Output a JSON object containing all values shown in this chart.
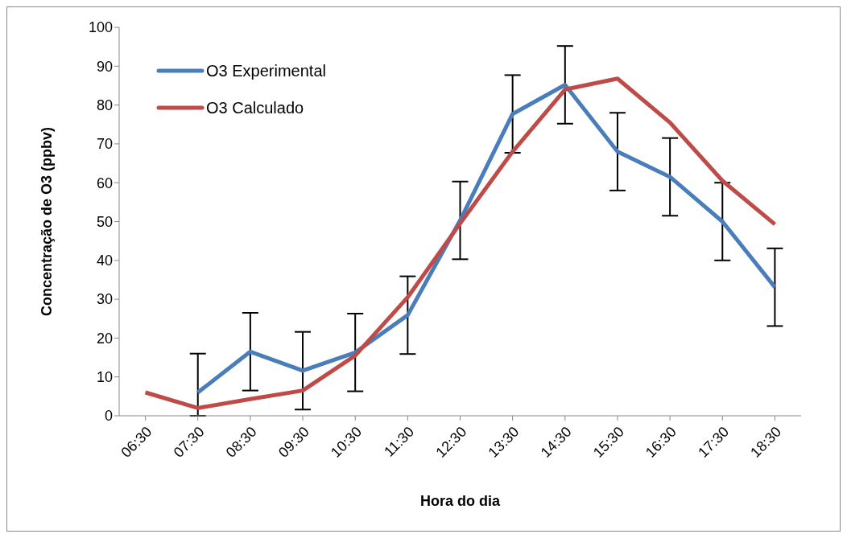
{
  "chart_data": {
    "type": "line",
    "xlabel": "Hora do dia",
    "ylabel": "Concentração de O3 (ppbv)",
    "categories": [
      "06:30",
      "07:30",
      "08:30",
      "09:30",
      "10:30",
      "11:30",
      "12:30",
      "13:30",
      "14:30",
      "15:30",
      "16:30",
      "17:30",
      "18:30"
    ],
    "series": [
      {
        "name": "O3 Experimental",
        "color": "#4a7ebb",
        "values": [
          null,
          6,
          16.5,
          11.6,
          16.3,
          25.9,
          50.3,
          77.7,
          85.2,
          68,
          61.5,
          50,
          33.1
        ],
        "errors": [
          null,
          [
            0,
            16
          ],
          10,
          10,
          10,
          10,
          10,
          10,
          10,
          10,
          10,
          10,
          10
        ]
      },
      {
        "name": "O3 Calculado",
        "color": "#be4b48",
        "values": [
          6,
          2,
          4.3,
          6.5,
          15.5,
          30.5,
          49.5,
          68,
          84,
          86.8,
          75.5,
          60.5,
          49.3
        ]
      }
    ],
    "ylim": [
      0,
      100
    ],
    "yticks": [
      0,
      10,
      20,
      30,
      40,
      50,
      60,
      70,
      80,
      90,
      100
    ],
    "grid": false,
    "legend": "top left",
    "marker": "none",
    "line_style": "solid"
  }
}
